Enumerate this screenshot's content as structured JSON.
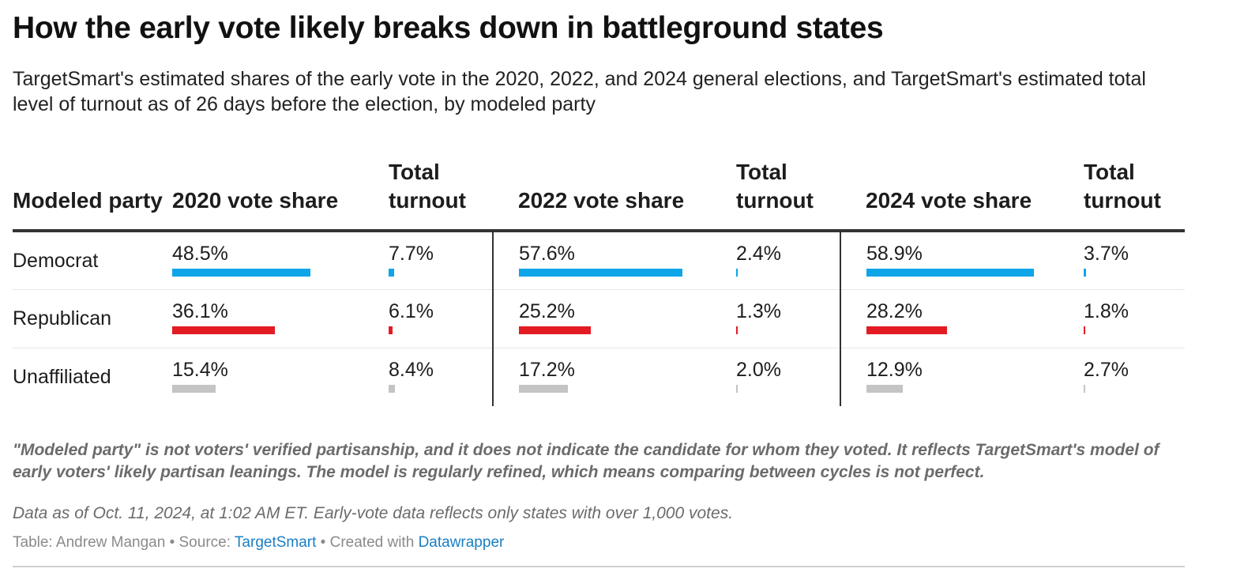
{
  "title": "How the early vote likely breaks down in battleground states",
  "subtitle": "TargetSmart's estimated shares of the early vote in the 2020, 2022, and 2024 general elections, and TargetSmart's estimated total level of turnout as of 26 days before the election, by modeled party",
  "colors": {
    "Democrat": "#0ea5e9",
    "Republican": "#e31b23",
    "Unaffiliated": "#c4c4c4"
  },
  "chart_data": {
    "type": "table",
    "columns": [
      {
        "key": "party",
        "label": "Modeled party"
      },
      {
        "key": "vs2020",
        "label": "2020 vote share"
      },
      {
        "key": "to2020",
        "label": "Total turnout"
      },
      {
        "key": "vs2022",
        "label": "2022 vote share"
      },
      {
        "key": "to2022",
        "label": "Total turnout"
      },
      {
        "key": "vs2024",
        "label": "2024 vote share"
      },
      {
        "key": "to2024",
        "label": "Total turnout"
      }
    ],
    "rows": [
      {
        "party": "Democrat",
        "vs2020": 48.5,
        "to2020": 7.7,
        "vs2022": 57.6,
        "to2022": 2.4,
        "vs2024": 58.9,
        "to2024": 3.7,
        "labels": {
          "vs2020": "48.5%",
          "to2020": "7.7%",
          "vs2022": "57.6%",
          "to2022": "2.4%",
          "vs2024": "58.9%",
          "to2024": "3.7%"
        }
      },
      {
        "party": "Republican",
        "vs2020": 36.1,
        "to2020": 6.1,
        "vs2022": 25.2,
        "to2022": 1.3,
        "vs2024": 28.2,
        "to2024": 1.8,
        "labels": {
          "vs2020": "36.1%",
          "to2020": "6.1%",
          "vs2022": "25.2%",
          "to2022": "1.3%",
          "vs2024": "28.2%",
          "to2024": "1.8%"
        }
      },
      {
        "party": "Unaffiliated",
        "vs2020": 15.4,
        "to2020": 8.4,
        "vs2022": 17.2,
        "to2022": 2.0,
        "vs2024": 12.9,
        "to2024": 2.7,
        "labels": {
          "vs2020": "15.4%",
          "to2020": "8.4%",
          "vs2022": "17.2%",
          "to2022": "2.0%",
          "vs2024": "12.9%",
          "to2024": "2.7%"
        }
      }
    ]
  },
  "note": "\"Modeled party\" is not voters' verified partisanship, and it does not indicate the candidate for whom they voted. It reflects TargetSmart's model of early voters' likely partisan leanings. The model is regularly refined, which means comparing between cycles is not perfect.",
  "data_as_of": "Data as of Oct. 11, 2024, at 1:02 AM ET. Early-vote data reflects only states with over 1,000 votes.",
  "footer": {
    "table_by": "Table: Andrew Mangan",
    "sep1": " • Source: ",
    "source": "TargetSmart",
    "sep2": " • Created with ",
    "tool": "Datawrapper"
  }
}
